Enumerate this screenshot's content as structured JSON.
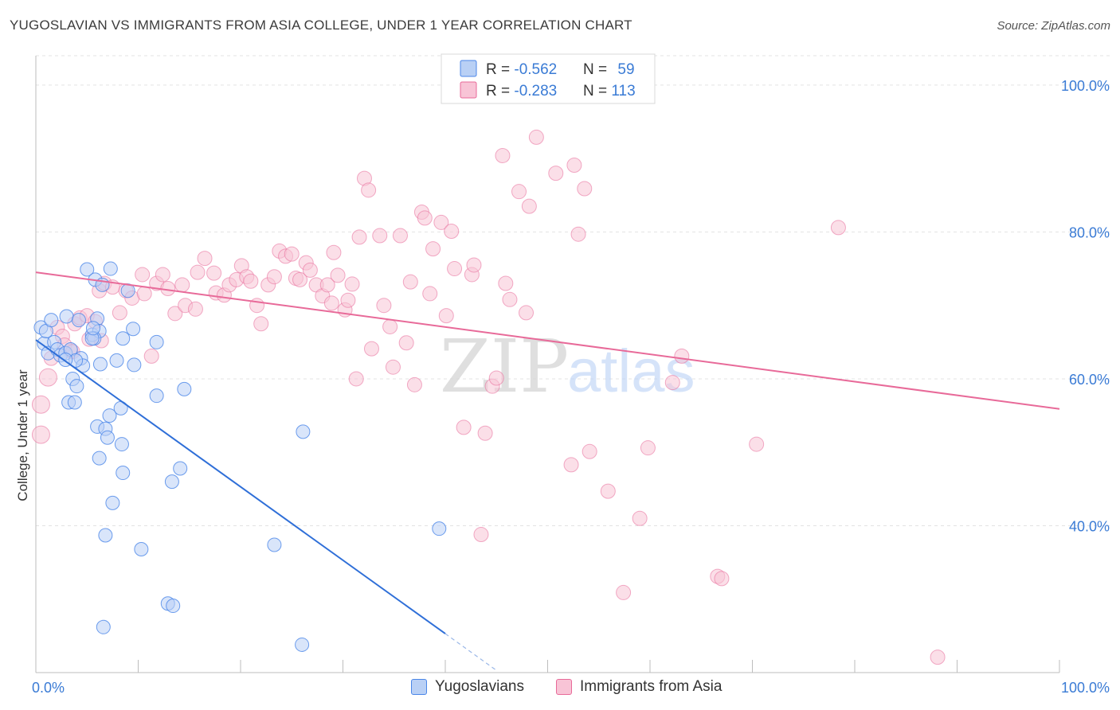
{
  "header": {
    "title": "YUGOSLAVIAN VS IMMIGRANTS FROM ASIA COLLEGE, UNDER 1 YEAR CORRELATION CHART",
    "source": "Source: ZipAtlas.com"
  },
  "watermark": {
    "zip": "ZIP",
    "atlas": "atlas"
  },
  "legend_box": {
    "rows": [
      {
        "r_label": "R = ",
        "r_value": "-0.562",
        "n_label": "N = ",
        "n_value": "59"
      },
      {
        "r_label": "R = ",
        "r_value": "-0.283",
        "n_label": "N = ",
        "n_value": "113"
      }
    ]
  },
  "bottom_legend": {
    "series1": "Yugoslavians",
    "series2": "Immigrants from Asia"
  },
  "chart_data": {
    "type": "scatter",
    "title": "YUGOSLAVIAN VS IMMIGRANTS FROM ASIA COLLEGE, UNDER 1 YEAR CORRELATION CHART",
    "xlabel": "",
    "ylabel": "College, Under 1 year",
    "xlim": [
      0,
      100
    ],
    "ylim": [
      20,
      104
    ],
    "x_tick_labels": [
      {
        "value": 0,
        "label": "0.0%"
      },
      {
        "value": 100,
        "label": "100.0%"
      }
    ],
    "y_tick_labels": [
      {
        "value": 40,
        "label": "40.0%"
      },
      {
        "value": 60,
        "label": "60.0%"
      },
      {
        "value": 80,
        "label": "80.0%"
      },
      {
        "value": 100,
        "label": "100.0%"
      }
    ],
    "colors": {
      "series1": "#4a86e8",
      "series1_fill": "#b9d0f5",
      "series2": "#e86a99",
      "series2_fill": "#f8c4d6",
      "tick": "#3a7bd5"
    },
    "series": [
      {
        "name": "Yugoslavians",
        "r": -0.562,
        "n": 59,
        "trend": {
          "x": [
            0,
            40
          ],
          "y": [
            65.3,
            25.3
          ],
          "dashed_to": [
            45,
            20.3
          ]
        },
        "points": [
          [
            0.5,
            67
          ],
          [
            0.8,
            64.8
          ],
          [
            1,
            66.5
          ],
          [
            1.2,
            63.5
          ],
          [
            1.5,
            68
          ],
          [
            1.8,
            65
          ],
          [
            2.1,
            64
          ],
          [
            2.4,
            63.2
          ],
          [
            2.9,
            63.5
          ],
          [
            3.4,
            64
          ],
          [
            3,
            68.5
          ],
          [
            4.2,
            68
          ],
          [
            5,
            74.9
          ],
          [
            5.5,
            66
          ],
          [
            6,
            68.2
          ],
          [
            5.8,
            73.5
          ],
          [
            6.2,
            66.5
          ],
          [
            6.3,
            62
          ],
          [
            5.7,
            65.5
          ],
          [
            4.4,
            62.8
          ],
          [
            4.6,
            61.8
          ],
          [
            5.5,
            65.5
          ],
          [
            3.6,
            60
          ],
          [
            4,
            59
          ],
          [
            3.2,
            56.8
          ],
          [
            3.8,
            56.8
          ],
          [
            6,
            53.5
          ],
          [
            6.8,
            53.2
          ],
          [
            7.2,
            55
          ],
          [
            8.3,
            56
          ],
          [
            8.4,
            51.1
          ],
          [
            6.2,
            49.2
          ],
          [
            7,
            52
          ],
          [
            8.5,
            47.2
          ],
          [
            7.5,
            43.1
          ],
          [
            6.8,
            38.7
          ],
          [
            10.3,
            36.8
          ],
          [
            12.9,
            29.4
          ],
          [
            13.4,
            29.1
          ],
          [
            6.6,
            26.2
          ],
          [
            8.5,
            65.5
          ],
          [
            9.5,
            66.8
          ],
          [
            9,
            72
          ],
          [
            11.8,
            65
          ],
          [
            7.9,
            62.5
          ],
          [
            9.6,
            61.9
          ],
          [
            11.8,
            57.7
          ],
          [
            13.3,
            46
          ],
          [
            14.1,
            47.8
          ],
          [
            14.5,
            58.6
          ],
          [
            7.3,
            75
          ],
          [
            6.5,
            72.8
          ],
          [
            5.6,
            66.9
          ],
          [
            3.9,
            62.5
          ],
          [
            2.9,
            62.6
          ],
          [
            26,
            23.8
          ],
          [
            23.3,
            37.4
          ],
          [
            26.1,
            52.8
          ],
          [
            39.4,
            39.6
          ]
        ]
      },
      {
        "name": "Immigrants from Asia",
        "r": -0.283,
        "n": 113,
        "trend": {
          "x": [
            0,
            100
          ],
          "y": [
            74.5,
            55.9
          ]
        },
        "points": [
          [
            0.5,
            56.5
          ],
          [
            0.5,
            52.4
          ],
          [
            1.2,
            60.2
          ],
          [
            1.5,
            62.8
          ],
          [
            2.1,
            67
          ],
          [
            2.6,
            65.8
          ],
          [
            3.4,
            63.8
          ],
          [
            3.8,
            67.5
          ],
          [
            4.3,
            68.3
          ],
          [
            5,
            68.6
          ],
          [
            5.8,
            67.8
          ],
          [
            6.2,
            72
          ],
          [
            6.7,
            73
          ],
          [
            7.5,
            72.5
          ],
          [
            8.2,
            69
          ],
          [
            8.8,
            72
          ],
          [
            9.4,
            71
          ],
          [
            10.4,
            74.2
          ],
          [
            10.6,
            71.6
          ],
          [
            11.3,
            63.1
          ],
          [
            11.8,
            73
          ],
          [
            12.4,
            74.2
          ],
          [
            12.9,
            72.3
          ],
          [
            13.6,
            68.9
          ],
          [
            14.3,
            72.8
          ],
          [
            14.6,
            70
          ],
          [
            15.6,
            69.5
          ],
          [
            15.8,
            74.5
          ],
          [
            16.5,
            76.4
          ],
          [
            17.4,
            74.4
          ],
          [
            17.6,
            71.7
          ],
          [
            18.4,
            71.4
          ],
          [
            18.9,
            72.8
          ],
          [
            19.6,
            73.5
          ],
          [
            20.1,
            75.4
          ],
          [
            20.6,
            73.9
          ],
          [
            21,
            73.3
          ],
          [
            21.6,
            70
          ],
          [
            22,
            67.5
          ],
          [
            22.7,
            72.8
          ],
          [
            23.3,
            73.9
          ],
          [
            23.8,
            77.4
          ],
          [
            24.4,
            76.7
          ],
          [
            25,
            77
          ],
          [
            25.4,
            73.7
          ],
          [
            25.8,
            73.5
          ],
          [
            26.4,
            75.8
          ],
          [
            26.8,
            74.8
          ],
          [
            27.4,
            72.8
          ],
          [
            28,
            71.3
          ],
          [
            28.5,
            72.8
          ],
          [
            28.9,
            70.3
          ],
          [
            29.1,
            77.2
          ],
          [
            29.5,
            74.1
          ],
          [
            30.2,
            69.4
          ],
          [
            30.5,
            70.7
          ],
          [
            30.9,
            72.9
          ],
          [
            31.3,
            60
          ],
          [
            31.6,
            79.3
          ],
          [
            32.1,
            87.3
          ],
          [
            32.5,
            85.7
          ],
          [
            32.8,
            64.1
          ],
          [
            33.6,
            79.5
          ],
          [
            34,
            70
          ],
          [
            34.6,
            67.1
          ],
          [
            34.9,
            61.6
          ],
          [
            35.6,
            79.5
          ],
          [
            36.2,
            64.9
          ],
          [
            36.6,
            73.2
          ],
          [
            37,
            59.2
          ],
          [
            37.7,
            82.7
          ],
          [
            38,
            81.9
          ],
          [
            38.5,
            71.6
          ],
          [
            38.8,
            77.7
          ],
          [
            39.6,
            81.3
          ],
          [
            40.1,
            68.6
          ],
          [
            40.6,
            80.1
          ],
          [
            40.9,
            75
          ],
          [
            41.8,
            53.4
          ],
          [
            42.6,
            74.2
          ],
          [
            42.8,
            75.5
          ],
          [
            43.5,
            38.8
          ],
          [
            43.9,
            52.6
          ],
          [
            44.6,
            59
          ],
          [
            45,
            60.1
          ],
          [
            45.6,
            90.4
          ],
          [
            45.9,
            73
          ],
          [
            46.3,
            70.8
          ],
          [
            47.2,
            85.5
          ],
          [
            47.9,
            69
          ],
          [
            48.2,
            83.5
          ],
          [
            48.9,
            92.9
          ],
          [
            50.8,
            88
          ],
          [
            52.3,
            48.3
          ],
          [
            52.6,
            89.1
          ],
          [
            53,
            79.7
          ],
          [
            53.6,
            85.9
          ],
          [
            54.1,
            50.1
          ],
          [
            55.9,
            44.7
          ],
          [
            57.4,
            30.9
          ],
          [
            59,
            41
          ],
          [
            59.8,
            50.6
          ],
          [
            62.2,
            59.5
          ],
          [
            63.1,
            63.1
          ],
          [
            66.6,
            33.1
          ],
          [
            67,
            32.8
          ],
          [
            70.4,
            51.1
          ],
          [
            78.4,
            80.6
          ],
          [
            88.1,
            22.1
          ],
          [
            2.8,
            64.6
          ],
          [
            3.6,
            63.7
          ],
          [
            5.2,
            65.4
          ],
          [
            6.4,
            65.2
          ]
        ]
      }
    ]
  }
}
